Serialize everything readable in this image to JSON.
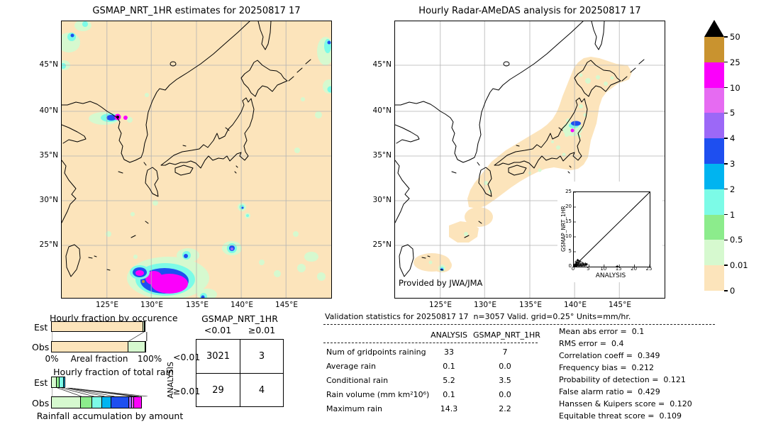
{
  "colors": {
    "peach": "#fce4bb",
    "palegreen": "#d6f9cf",
    "green": "#8cec8c",
    "cyan": "#7cfbe7",
    "sky": "#00b4f0",
    "blue": "#1e4ff0",
    "purple": "#9c68f7",
    "orchid": "#e66bf2",
    "magenta": "#fb00fb",
    "gold": "#c9932f",
    "over": "#000000",
    "grid": "#b3b3b3"
  },
  "left_map": {
    "title": "GSMAP_NRT_1HR estimates for 20250817 17",
    "lat_ticks": [
      "45°N",
      "40°N",
      "35°N",
      "30°N",
      "25°N"
    ],
    "lon_ticks": [
      "125°E",
      "130°E",
      "135°E",
      "140°E",
      "145°E"
    ]
  },
  "right_map": {
    "title": "Hourly Radar-AMeDAS analysis for 20250817 17",
    "credit": "Provided by JWA/JMA",
    "lat_ticks": [
      "45°N",
      "40°N",
      "35°N",
      "30°N",
      "25°N"
    ],
    "lon_ticks": [
      "125°E",
      "130°E",
      "135°E",
      "140°E",
      "145°E"
    ],
    "inset": {
      "xlabel": "ANALYSIS",
      "ylabel": "GSMAP_NRT_1HR",
      "ticks": [
        "0",
        "5",
        "10",
        "15",
        "20",
        "25"
      ]
    }
  },
  "colorbar": {
    "ticks": [
      "50",
      "25",
      "10",
      "5",
      "4",
      "3",
      "2",
      "1",
      "0.5",
      "0.01",
      "0"
    ],
    "colors": [
      "#c9932f",
      "#fb00fb",
      "#e66bf2",
      "#9c68f7",
      "#1e4ff0",
      "#00b4f0",
      "#7cfbe7",
      "#8cec8c",
      "#d6f9cf",
      "#fce4bb"
    ],
    "over_color": "#000000",
    "units": "mm/hr"
  },
  "occurrence_chart": {
    "title": "Hourly fraction by occurence",
    "row_labels": [
      "Est",
      "Obs"
    ],
    "xmin_label": "0%",
    "xlabel": "Areal fraction",
    "xmax_label": "100%",
    "est_segments": [
      {
        "color": "peach",
        "pct": 96.5
      },
      {
        "color": "palegreen",
        "pct": 2.2
      },
      {
        "color": "green",
        "pct": 1.3
      }
    ],
    "obs_segments": [
      {
        "color": "peach",
        "pct": 80.5
      },
      {
        "color": "palegreen",
        "pct": 18.5
      },
      {
        "color": "green",
        "pct": 1.0
      }
    ]
  },
  "totalrain_chart": {
    "title": "Hourly fraction of total rain",
    "row_labels": [
      "Est",
      "Obs"
    ],
    "caption": "Rainfall accumulation by amount",
    "est_segments": [
      {
        "color": "palegreen",
        "pct": 6
      },
      {
        "color": "green",
        "pct": 4
      },
      {
        "color": "cyan",
        "pct": 4.8
      },
      {
        "color": "sky",
        "pct": 2.2
      },
      {
        "color": "blue",
        "pct": 0
      },
      {
        "color": "purple",
        "pct": 0
      },
      {
        "color": "orchid",
        "pct": 0
      },
      {
        "color": "magenta",
        "pct": 0
      }
    ],
    "obs_segments": [
      {
        "color": "palegreen",
        "pct": 31
      },
      {
        "color": "green",
        "pct": 13
      },
      {
        "color": "cyan",
        "pct": 11
      },
      {
        "color": "sky",
        "pct": 10.5
      },
      {
        "color": "blue",
        "pct": 19
      },
      {
        "color": "purple",
        "pct": 3.5
      },
      {
        "color": "orchid",
        "pct": 3
      },
      {
        "color": "magenta",
        "pct": 9
      }
    ]
  },
  "contingency": {
    "col_group": "GSMAP_NRT_1HR",
    "row_group": "ANALYSIS",
    "col_labels": [
      "<0.01",
      "≥0.01"
    ],
    "row_labels": [
      "<0.01",
      "≥0.01"
    ],
    "values": [
      [
        "3021",
        "3"
      ],
      [
        "29",
        "4"
      ]
    ]
  },
  "stats": {
    "title": "Validation statistics for 20250817 17  n=3057 Valid. grid=0.25° Units=mm/hr.",
    "col_headers": [
      "ANALYSIS",
      "GSMAP_NRT_1HR"
    ],
    "rows": [
      {
        "label": "Num of gridpoints raining",
        "a": "33",
        "g": "7"
      },
      {
        "label": "Average rain",
        "a": "0.1",
        "g": "0.0"
      },
      {
        "label": "Conditional rain",
        "a": "5.2",
        "g": "3.5"
      },
      {
        "label": "Rain volume (mm km²10⁶)",
        "a": "0.1",
        "g": "0.0"
      },
      {
        "label": "Maximum rain",
        "a": "14.3",
        "g": "2.2"
      }
    ],
    "metrics": [
      {
        "label": "Mean abs error =",
        "value": "0.1"
      },
      {
        "label": "RMS error =",
        "value": "0.4"
      },
      {
        "label": "Correlation coeff =",
        "value": "0.349"
      },
      {
        "label": "Frequency bias =",
        "value": "0.212"
      },
      {
        "label": "Probability of detection =",
        "value": "0.121"
      },
      {
        "label": "False alarm ratio =",
        "value": "0.429"
      },
      {
        "label": "Hanssen & Kuipers score =",
        "value": "0.120"
      },
      {
        "label": "Equitable threat score =",
        "value": "0.109"
      }
    ]
  },
  "chart_data": [
    {
      "type": "heatmap",
      "subtype": "precipitation-map",
      "title": "GSMAP_NRT_1HR estimates for 20250817 17",
      "units": "mm/hr",
      "x_ticks": [
        "125°E",
        "130°E",
        "135°E",
        "140°E",
        "145°E"
      ],
      "y_ticks": [
        "45°N",
        "40°N",
        "35°N",
        "30°N",
        "25°N"
      ],
      "color_levels": [
        0,
        0.01,
        0.5,
        1,
        2,
        3,
        4,
        5,
        10,
        25,
        50
      ],
      "notable_features": [
        "background 0-0.01 mm/hr (peach) over whole domain",
        "intense cell >25 mm/hr with >50 core near 39.3N 125.5E (NW Korea)",
        "large 10-25 mm/hr system with 3-5 ring SE of Okinawa near 23.5N 128-131E",
        "cell with 4-5 mm/hr core near 25N 139E",
        "scattered 0.01-2 mm/hr specks over ocean and map corners"
      ]
    },
    {
      "type": "heatmap",
      "subtype": "precipitation-map",
      "title": "Hourly Radar-AMeDAS analysis for 20250817 17",
      "units": "mm/hr",
      "credit": "Provided by JWA/JMA",
      "x_ticks": [
        "125°E",
        "130°E",
        "135°E",
        "140°E",
        "145°E"
      ],
      "y_ticks": [
        "45°N",
        "40°N",
        "35°N",
        "30°N",
        "25°N"
      ],
      "color_levels": [
        0,
        0.01,
        0.5,
        1,
        2,
        3,
        4,
        5,
        10,
        25,
        50
      ],
      "notable_features": [
        "radar coverage band (0-0.01 peach) along Japanese archipelago, white elsewhere",
        "rain cluster 3-4 mm/hr with small 10-25 cell near 39.3N 140E (N Honshu)",
        "scattered 0.01-1 mm/hr cells over Hokkaido and Ryukyu islands",
        "small 1-3 mm/hr cell near 23.7N 125E"
      ]
    },
    {
      "type": "scatter",
      "xlabel": "ANALYSIS",
      "ylabel": "GSMAP_NRT_1HR",
      "xlim": [
        0,
        25
      ],
      "ylim": [
        0,
        25
      ],
      "reference_line": "y=x",
      "marker": "+",
      "points": [
        [
          0.1,
          0.1
        ],
        [
          0.2,
          0.4
        ],
        [
          0.3,
          0.2
        ],
        [
          0.4,
          0.8
        ],
        [
          0.5,
          0.3
        ],
        [
          0.6,
          0.6
        ],
        [
          0.8,
          0.2
        ],
        [
          0.9,
          1.0
        ],
        [
          1.0,
          0.4
        ],
        [
          1.1,
          1.4
        ],
        [
          1.2,
          0.6
        ],
        [
          1.4,
          2.0
        ],
        [
          1.5,
          0.9
        ],
        [
          1.6,
          0.3
        ],
        [
          1.8,
          1.2
        ],
        [
          2.0,
          0.5
        ],
        [
          2.1,
          1.8
        ],
        [
          2.3,
          0.8
        ],
        [
          2.5,
          0.3
        ],
        [
          2.8,
          1.2
        ],
        [
          3.0,
          0.5
        ],
        [
          3.2,
          0.9
        ],
        [
          3.5,
          0.4
        ],
        [
          3.8,
          1.0
        ],
        [
          4.0,
          0.6
        ],
        [
          4.3,
          0.8
        ],
        [
          0.7,
          1.6
        ],
        [
          1.3,
          2.2
        ],
        [
          14.3,
          0.1
        ]
      ]
    },
    {
      "type": "bar",
      "title": "Hourly fraction by occurence",
      "stacked": true,
      "orientation": "horizontal",
      "categories": [
        "Est",
        "Obs"
      ],
      "xlabel": "Areal fraction",
      "xlim_labels": [
        "0%",
        "100%"
      ],
      "series": [
        {
          "name": "0-0.01 mm/hr",
          "color": "#fce4bb",
          "values": [
            96.5,
            80.5
          ]
        },
        {
          "name": "0.01-0.5 mm/hr",
          "color": "#d6f9cf",
          "values": [
            2.2,
            18.5
          ]
        },
        {
          "name": "0.5-1 mm/hr",
          "color": "#8cec8c",
          "values": [
            1.3,
            1.0
          ]
        }
      ]
    },
    {
      "type": "bar",
      "title": "Hourly fraction of total rain",
      "stacked": true,
      "orientation": "horizontal",
      "categories": [
        "Est",
        "Obs"
      ],
      "caption": "Rainfall accumulation by amount",
      "series": [
        {
          "name": "0.01-0.5",
          "color": "#d6f9cf",
          "values": [
            6,
            31
          ]
        },
        {
          "name": "0.5-1",
          "color": "#8cec8c",
          "values": [
            4,
            13
          ]
        },
        {
          "name": "1-2",
          "color": "#7cfbe7",
          "values": [
            4.8,
            11
          ]
        },
        {
          "name": "2-3",
          "color": "#00b4f0",
          "values": [
            2.2,
            10.5
          ]
        },
        {
          "name": "3-4",
          "color": "#1e4ff0",
          "values": [
            0,
            19
          ]
        },
        {
          "name": "4-5",
          "color": "#9c68f7",
          "values": [
            0,
            3.5
          ]
        },
        {
          "name": "5-10",
          "color": "#e66bf2",
          "values": [
            0,
            3
          ]
        },
        {
          "name": "10-25",
          "color": "#fb00fb",
          "values": [
            0,
            9
          ]
        }
      ]
    },
    {
      "type": "table",
      "name": "contingency-table",
      "col_group": "GSMAP_NRT_1HR",
      "row_group": "ANALYSIS",
      "cols": [
        "<0.01",
        "≥0.01"
      ],
      "rows": [
        "<0.01",
        "≥0.01"
      ],
      "values": [
        [
          3021,
          3
        ],
        [
          29,
          4
        ]
      ]
    },
    {
      "type": "table",
      "name": "validation-statistics",
      "title": "Validation statistics for 20250817 17  n=3057 Valid. grid=0.25° Units=mm/hr.",
      "columns": [
        "ANALYSIS",
        "GSMAP_NRT_1HR"
      ],
      "rows": [
        [
          "Num of gridpoints raining",
          33,
          7
        ],
        [
          "Average rain",
          0.1,
          0.0
        ],
        [
          "Conditional rain",
          5.2,
          3.5
        ],
        [
          "Rain volume (mm km²10⁶)",
          0.1,
          0.0
        ],
        [
          "Maximum rain",
          14.3,
          2.2
        ]
      ],
      "metrics": {
        "Mean abs error": 0.1,
        "RMS error": 0.4,
        "Correlation coeff": 0.349,
        "Frequency bias": 0.212,
        "Probability of detection": 0.121,
        "False alarm ratio": 0.429,
        "Hanssen & Kuipers score": 0.12,
        "Equitable threat score": 0.109
      }
    }
  ]
}
